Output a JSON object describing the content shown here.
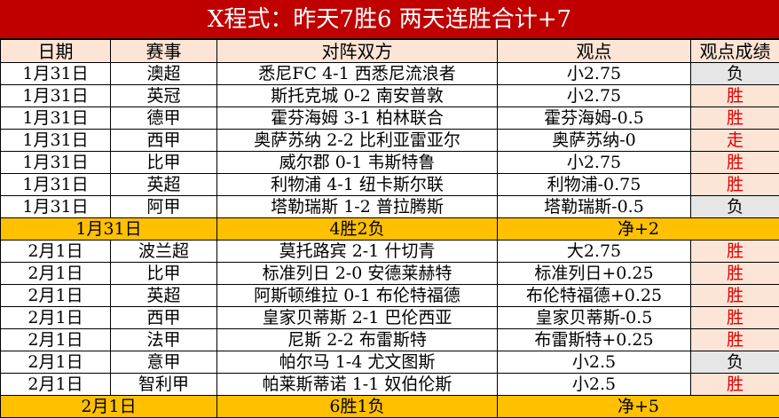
{
  "title": "X程式：昨天7胜6  两天连胜合计+7",
  "headers": [
    "日期",
    "赛事",
    "对阵双方",
    "观点",
    "观点成绩"
  ],
  "colors": {
    "title_bg": "#c00000",
    "header_bg": "#fce4d6",
    "summary_bg": "#ffc000",
    "win_text": "#e00000",
    "loss_bg": "#e7e6e6"
  },
  "groups": [
    {
      "rows": [
        {
          "date": "1月31日",
          "league": "澳超",
          "match": "悉尼FC 4-1 西悉尼流浪者",
          "view": "小2.75",
          "result": "负",
          "type": "loss"
        },
        {
          "date": "1月31日",
          "league": "英冠",
          "match": "斯托克城 0-2 南安普敦",
          "view": "小2.75",
          "result": "胜",
          "type": "win"
        },
        {
          "date": "1月31日",
          "league": "德甲",
          "match": "霍芬海姆 3-1 柏林联合",
          "view": "霍芬海姆-0.5",
          "result": "胜",
          "type": "win"
        },
        {
          "date": "1月31日",
          "league": "西甲",
          "match": "奥萨苏纳 2-2 比利亚雷亚尔",
          "view": "奥萨苏纳-0",
          "result": "走",
          "type": "win"
        },
        {
          "date": "1月31日",
          "league": "比甲",
          "match": "威尔郡 0-1 韦斯特鲁",
          "view": "小2.75",
          "result": "胜",
          "type": "win"
        },
        {
          "date": "1月31日",
          "league": "英超",
          "match": "利物浦 4-1 纽卡斯尔联",
          "view": "利物浦-0.75",
          "result": "胜",
          "type": "win"
        },
        {
          "date": "1月31日",
          "league": "阿甲",
          "match": "塔勒瑞斯 1-2 普拉腾斯",
          "view": "塔勒瑞斯-0.5",
          "result": "负",
          "type": "loss"
        }
      ],
      "summary": {
        "date": "1月31日",
        "record": "4胜2负",
        "net": "净+2"
      }
    },
    {
      "rows": [
        {
          "date": "2月1日",
          "league": "波兰超",
          "match": "莫托路宾 2-1 什切青",
          "view": "大2.75",
          "result": "胜",
          "type": "win"
        },
        {
          "date": "2月1日",
          "league": "比甲",
          "match": "标准列日 2-0 安德莱赫特",
          "view": "标准列日+0.25",
          "result": "胜",
          "type": "win"
        },
        {
          "date": "2月1日",
          "league": "英超",
          "match": "阿斯顿维拉 0-1 布伦特福德",
          "view": "布伦特福德+0.25",
          "result": "胜",
          "type": "win"
        },
        {
          "date": "2月1日",
          "league": "西甲",
          "match": "皇家贝蒂斯 2-1 巴伦西亚",
          "view": "皇家贝蒂斯-0.5",
          "result": "胜",
          "type": "win"
        },
        {
          "date": "2月1日",
          "league": "法甲",
          "match": "尼斯 2-2 布雷斯特",
          "view": "布雷斯特+0.25",
          "result": "胜",
          "type": "win"
        },
        {
          "date": "2月1日",
          "league": "意甲",
          "match": "帕尔马 1-4 尤文图斯",
          "view": "小2.5",
          "result": "负",
          "type": "loss"
        },
        {
          "date": "2月1日",
          "league": "智利甲",
          "match": "帕莱斯蒂诺 1-1 奴伯伦斯",
          "view": "小2.5",
          "result": "胜",
          "type": "win"
        }
      ],
      "summary": {
        "date": "2月1日",
        "record": "6胜1负",
        "net": "净+5"
      }
    }
  ]
}
